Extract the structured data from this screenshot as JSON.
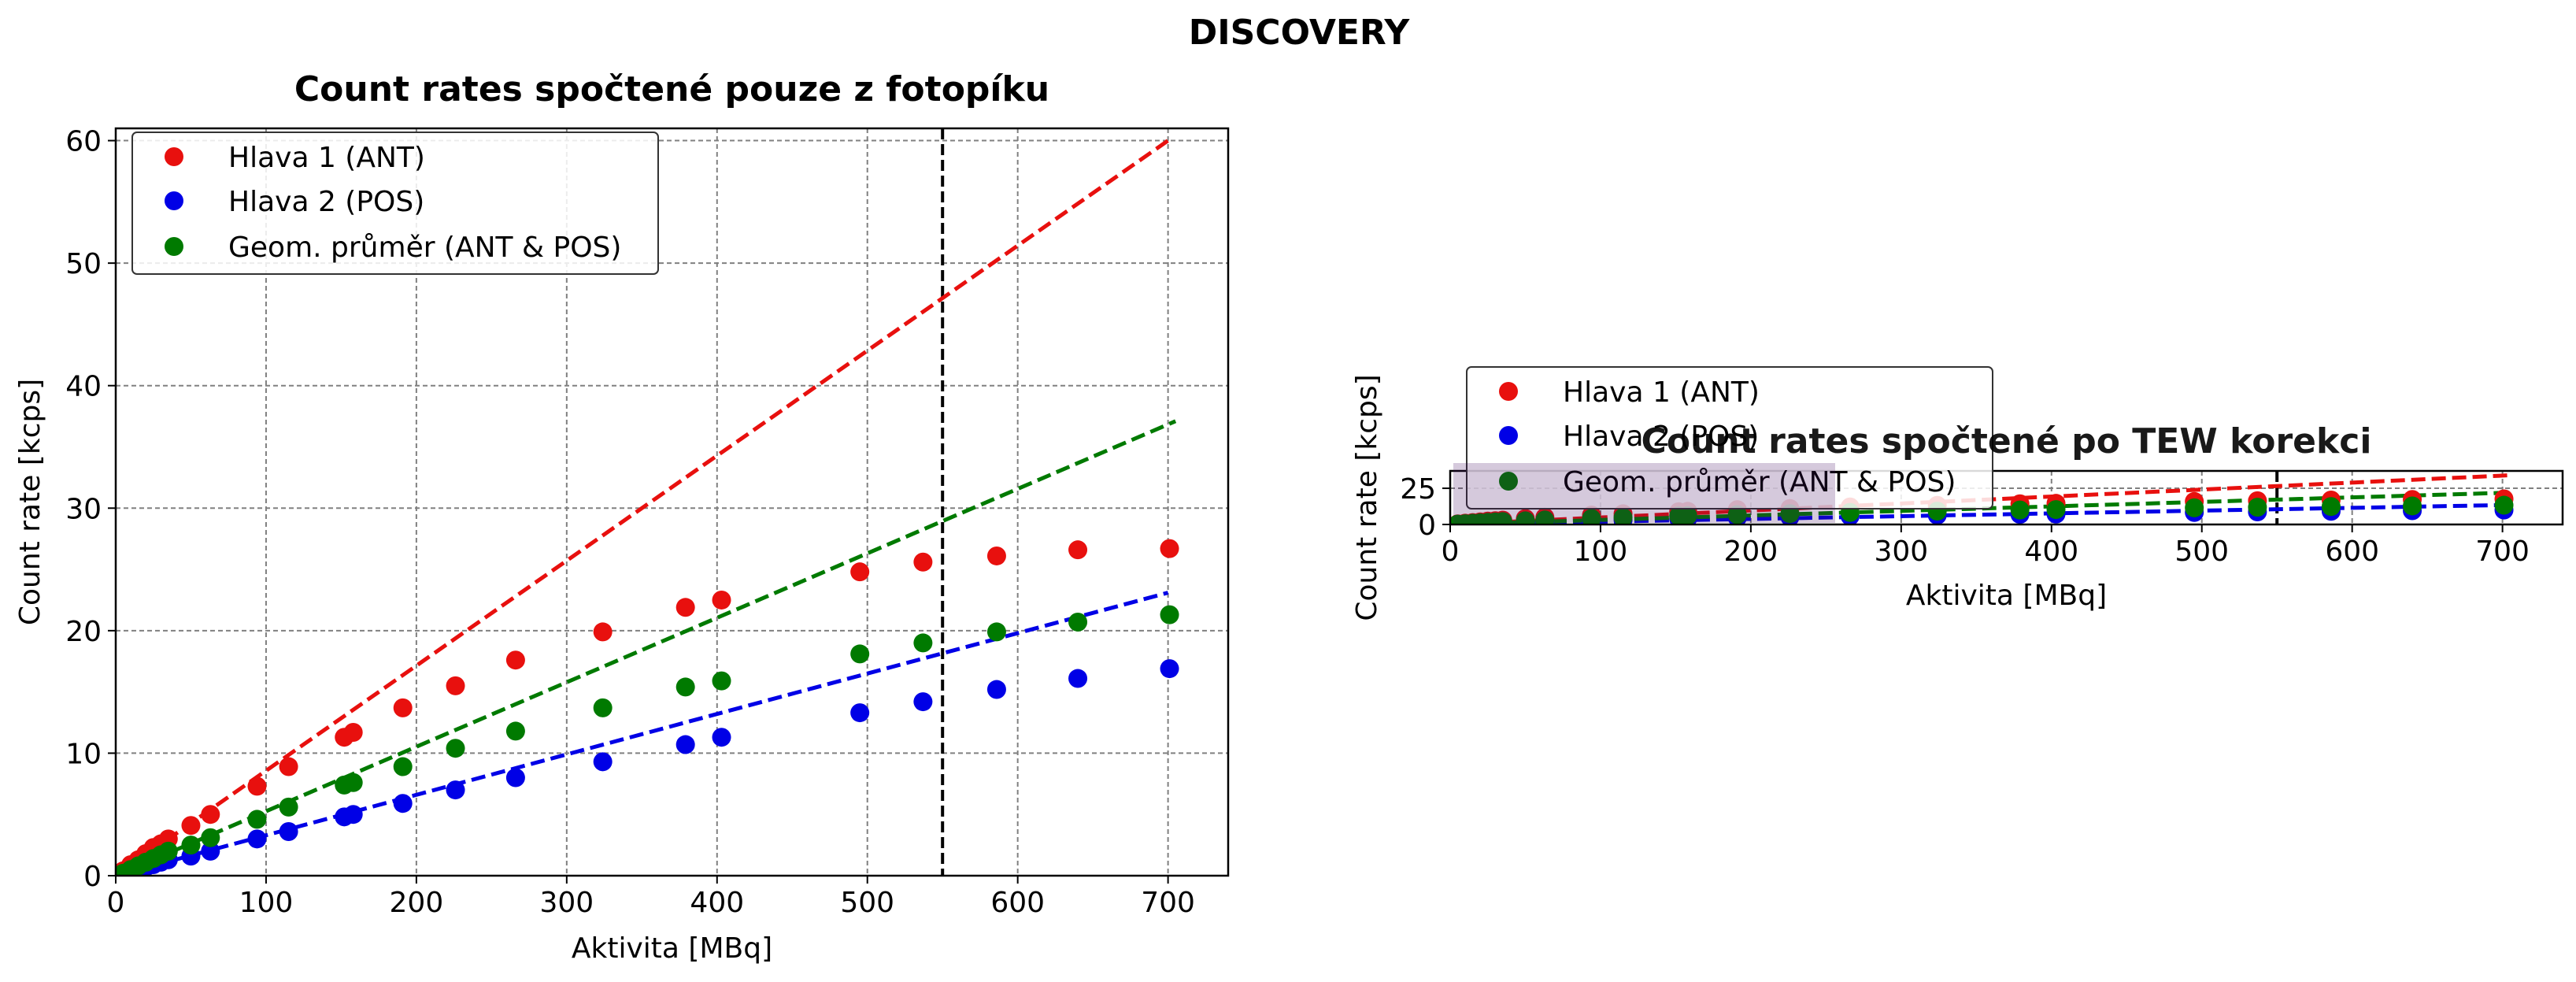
{
  "suptitle": "DISCOVERY",
  "colors": {
    "ant": "#e8100e",
    "pos": "#0000e6",
    "geo": "#007a00",
    "grid": "#808080",
    "vline": "#000000",
    "legend_patch": "#3f0a5e"
  },
  "chart_data": [
    {
      "type": "scatter",
      "title": "Count rates spočtené pouze z fotopíku",
      "xlabel": "Aktivita [MBq]",
      "ylabel": "Count rate [kcps]",
      "xlim": [
        0,
        740
      ],
      "ylim": [
        0,
        61
      ],
      "xticks": [
        0,
        100,
        200,
        300,
        400,
        500,
        600,
        700
      ],
      "yticks": [
        0,
        10,
        20,
        30,
        40,
        50,
        60
      ],
      "grid": true,
      "legend_position": "upper-left",
      "vline_x": 550,
      "x": [
        5,
        10,
        15,
        20,
        25,
        30,
        35,
        50,
        63,
        94,
        115,
        152,
        158,
        191,
        226,
        266,
        324,
        379,
        403,
        495,
        537,
        586,
        640,
        701
      ],
      "series": [
        {
          "name": "Hlava 1 (ANT)",
          "color_key": "ant",
          "values": [
            0.4,
            0.9,
            1.3,
            1.8,
            2.3,
            2.6,
            3.0,
            4.1,
            5.0,
            7.3,
            8.9,
            11.3,
            11.7,
            13.7,
            15.5,
            17.6,
            19.9,
            21.9,
            22.5,
            24.8,
            25.6,
            26.1,
            26.6,
            26.7
          ],
          "fit": [
            0,
            0,
            700,
            60
          ]
        },
        {
          "name": "Hlava 2 (POS)",
          "color_key": "pos",
          "values": [
            0.1,
            0.3,
            0.5,
            0.7,
            0.9,
            1.1,
            1.3,
            1.6,
            2.0,
            3.0,
            3.6,
            4.8,
            5.0,
            5.9,
            7.0,
            8.0,
            9.3,
            10.7,
            11.3,
            13.3,
            14.2,
            15.2,
            16.1,
            16.9
          ],
          "fit": [
            0,
            0,
            700,
            23.1
          ]
        },
        {
          "name": "Geom. průměr (ANT & POS)",
          "color_key": "geo",
          "values": [
            0.2,
            0.5,
            0.8,
            1.1,
            1.4,
            1.7,
            2.0,
            2.5,
            3.1,
            4.6,
            5.6,
            7.4,
            7.6,
            8.9,
            10.4,
            11.8,
            13.7,
            15.4,
            15.9,
            18.1,
            19.0,
            19.9,
            20.7,
            21.3
          ],
          "fit": [
            0,
            0,
            705,
            37.1
          ]
        }
      ]
    },
    {
      "type": "scatter",
      "title": "Count rates spočtené po TEW korekci",
      "xlabel": "Aktivita [MBq]",
      "ylabel": "Count rate [kcps]",
      "xlim": [
        0,
        740
      ],
      "ylim": [
        0,
        37
      ],
      "xticks": [
        0,
        100,
        200,
        300,
        400,
        500,
        600,
        700
      ],
      "yticks": [
        0,
        25
      ],
      "grid": true,
      "legend_position": "upper-left",
      "vline_x": 550,
      "x": [
        5,
        10,
        15,
        20,
        25,
        30,
        35,
        50,
        63,
        94,
        115,
        152,
        158,
        191,
        226,
        266,
        324,
        379,
        403,
        495,
        537,
        586,
        640,
        701
      ],
      "series": [
        {
          "name": "Hlava 1 (ANT)",
          "color_key": "ant",
          "values": [
            0.4,
            0.9,
            1.3,
            1.8,
            2.3,
            2.6,
            3.0,
            4.1,
            5.0,
            6.5,
            7.4,
            8.8,
            9.1,
            10.2,
            11.0,
            12.1,
            13.2,
            14.3,
            14.6,
            15.9,
            16.4,
            16.9,
            17.3,
            17.7
          ],
          "fit": [
            0,
            0,
            705,
            34
          ]
        },
        {
          "name": "Hlava 2 (POS)",
          "color_key": "pos",
          "values": [
            0.1,
            0.3,
            0.5,
            0.7,
            0.9,
            1.1,
            1.3,
            1.6,
            2.0,
            2.6,
            3.1,
            3.9,
            4.1,
            4.6,
            5.1,
            5.7,
            6.4,
            7.0,
            7.2,
            8.3,
            8.7,
            9.1,
            9.5,
            10.0
          ],
          "fit": [
            0,
            0,
            705,
            13.5
          ]
        },
        {
          "name": "Geom. průměr (ANT & POS)",
          "color_key": "geo",
          "values": [
            0.2,
            0.5,
            0.8,
            1.1,
            1.4,
            1.7,
            2.0,
            2.5,
            3.1,
            4.1,
            4.8,
            5.9,
            6.1,
            6.8,
            7.5,
            8.3,
            9.2,
            10.0,
            10.3,
            11.5,
            11.9,
            12.4,
            12.8,
            13.3
          ],
          "fit": [
            0,
            0,
            705,
            22
          ]
        }
      ]
    }
  ]
}
